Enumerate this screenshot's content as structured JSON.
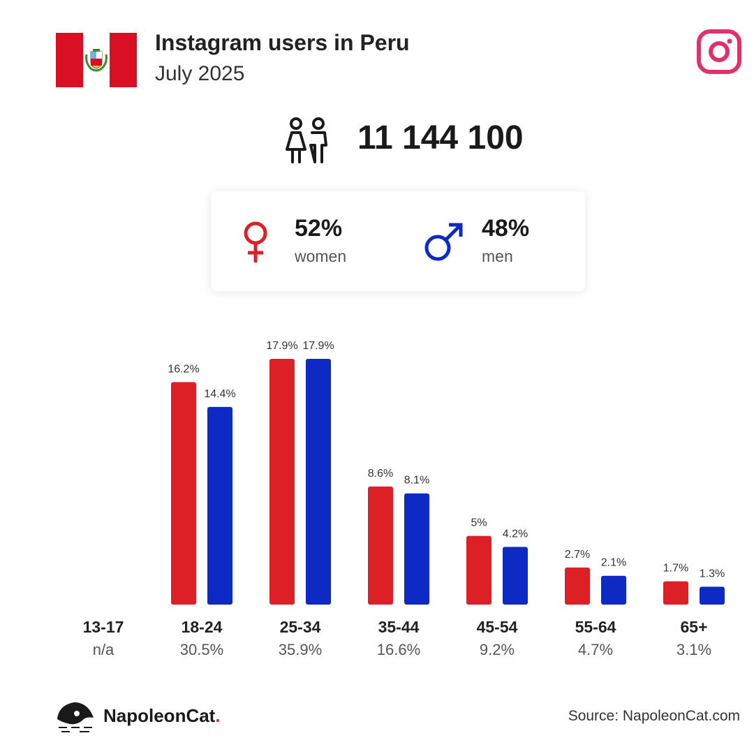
{
  "header": {
    "title": "Instagram users in Peru",
    "subtitle": "July 2025",
    "flag_colors": [
      "#d91023",
      "#ffffff",
      "#d91023"
    ],
    "flag_icon": "peru-flag-icon",
    "brand_icon": "instagram-icon",
    "brand_color": "#e1306c"
  },
  "summary": {
    "total": "11 144 100",
    "icon": "people-icon",
    "women": {
      "pct": "52%",
      "label": "women",
      "icon": "female-icon",
      "color": "#dd1f26"
    },
    "men": {
      "pct": "48%",
      "label": "men",
      "icon": "male-icon",
      "color": "#0e2ac4"
    }
  },
  "chart_data": {
    "type": "bar",
    "categories": [
      "13-17",
      "18-24",
      "25-34",
      "35-44",
      "45-54",
      "55-64",
      "65+"
    ],
    "totals": [
      "n/a",
      "30.5%",
      "35.9%",
      "16.6%",
      "9.2%",
      "4.7%",
      "3.1%"
    ],
    "series": [
      {
        "name": "women",
        "color": "#dd1f26",
        "values": [
          null,
          16.2,
          17.9,
          8.6,
          5,
          2.7,
          1.7
        ],
        "labels": [
          "",
          "16.2%",
          "17.9%",
          "8.6%",
          "5%",
          "2.7%",
          "1.7%"
        ]
      },
      {
        "name": "men",
        "color": "#0e2ac4",
        "values": [
          null,
          14.4,
          17.9,
          8.1,
          4.2,
          2.1,
          1.3
        ],
        "labels": [
          "",
          "14.4%",
          "17.9%",
          "8.1%",
          "4.2%",
          "2.1%",
          "1.3%"
        ]
      }
    ],
    "ylim": [
      0,
      17.9
    ],
    "grid": false
  },
  "footer": {
    "brand_name": "NapoleonCat",
    "brand_dot": ".",
    "brand_icon": "napoleoncat-logo-icon",
    "source": "Source: NapoleonCat.com"
  }
}
